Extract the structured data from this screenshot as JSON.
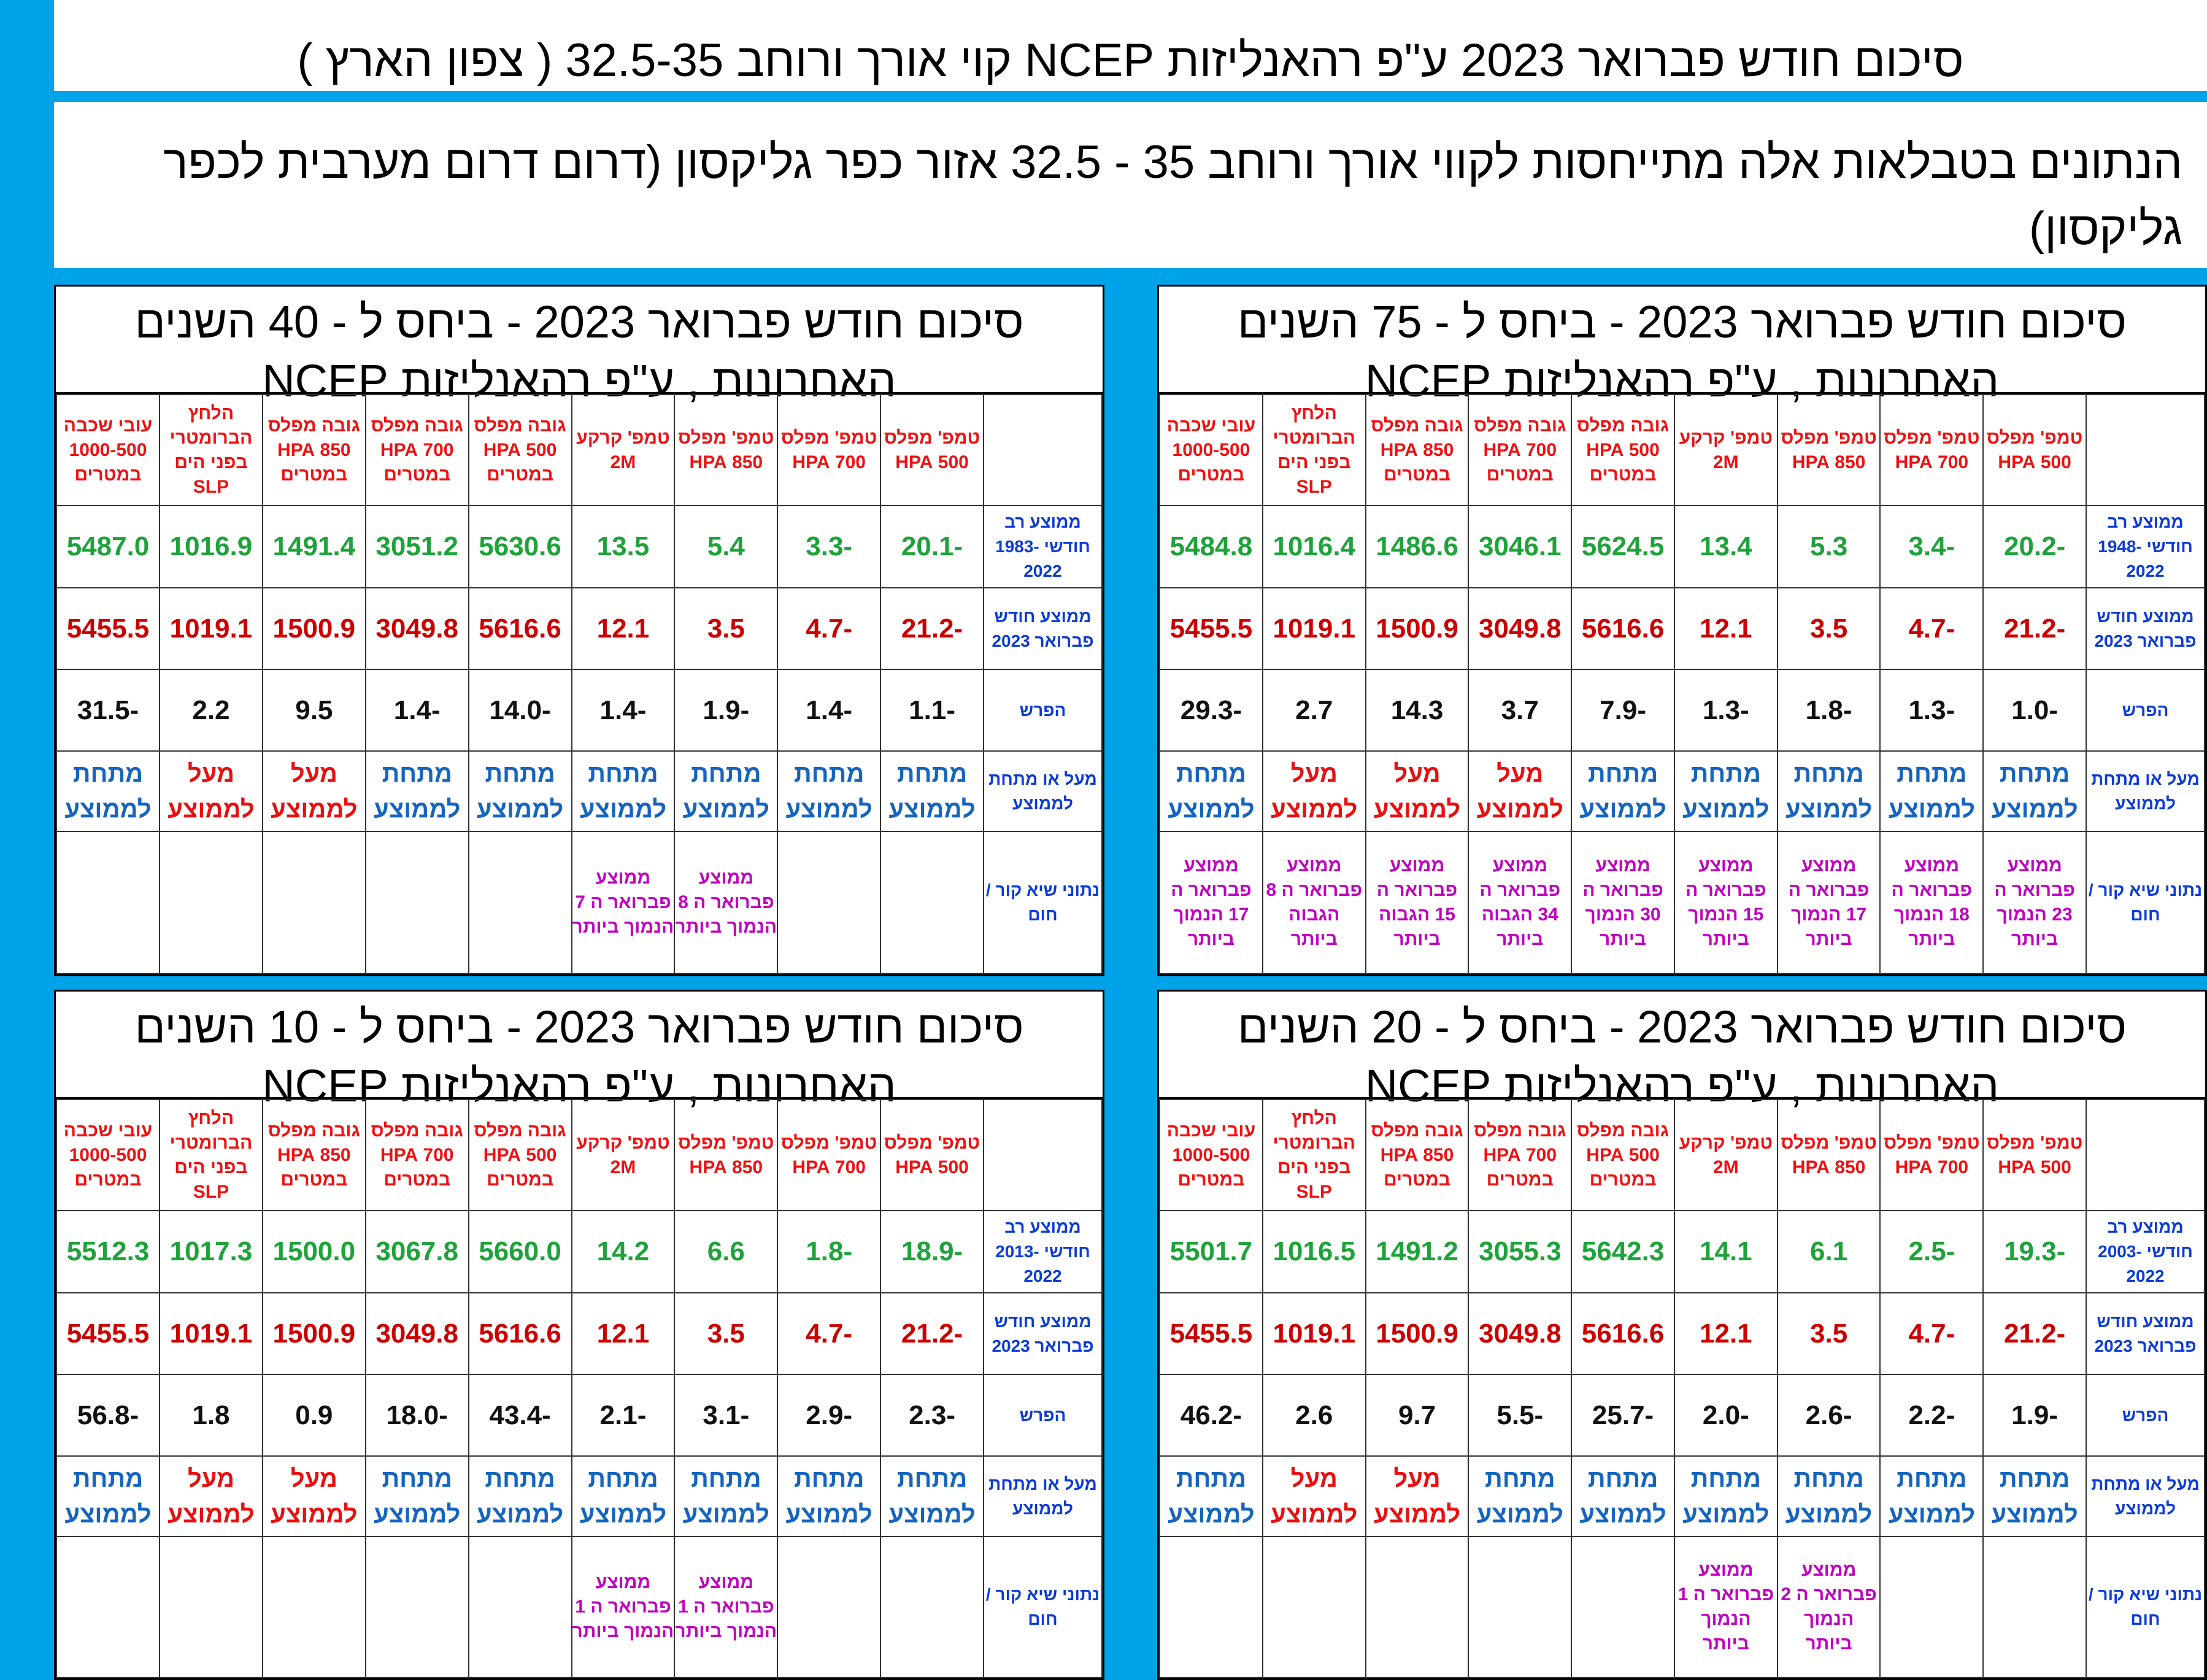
{
  "main_title": "סיכום חודש פברואר 2023 ע\"פ רהאנליזות NCEP קוי אורך ורוחב 32.5-35 ( צפון הארץ )",
  "info": "הנתונים בטבלאות אלה מתייחסות לקווי אורך ורוחב 35 - 32.5 אזור כפר גליקסון (דרום דרום מערבית לכפר גליקסון)",
  "columns": [
    "טמפ' מפלס 500 HPA",
    "טמפ' מפלס 700 HPA",
    "טמפ' מפלס 850 HPA",
    "טמפ' קרקע 2M",
    "גובה מפלס 500 HPA במטרים",
    "גובה מפלס 700 HPA במטרים",
    "גובה מפלס 850 HPA במטרים",
    "הלחץ הברומטרי בפני הים SLP",
    "עובי שכבה 1000-500 במטרים"
  ],
  "labels": {
    "current": "ממוצע חודש פברואר 2023",
    "diff": "הפרש",
    "above_below": "מעל או מתחת לממוצע",
    "records": "נתוני שיא קור / חום",
    "above": "מעל לממוצע",
    "below": "מתחת לממוצע"
  },
  "panels": [
    {
      "title": "סיכום חודש פברואר 2023 - ביחס ל - 75 השנים האחרונות , ע\"פ רהאנליזות NCEP",
      "clim_label": "ממוצע רב חודשי 1948-2022",
      "clim": [
        "-20.2",
        "-3.4",
        "5.3",
        "13.4",
        "5624.5",
        "3046.1",
        "1486.6",
        "1016.4",
        "5484.8"
      ],
      "current": [
        "-21.2",
        "-4.7",
        "3.5",
        "12.1",
        "5616.6",
        "3049.8",
        "1500.9",
        "1019.1",
        "5455.5"
      ],
      "diff": [
        "-1.0",
        "-1.3",
        "-1.8",
        "-1.3",
        "-7.9",
        "3.7",
        "14.3",
        "2.7",
        "-29.3"
      ],
      "above_below": [
        "below",
        "below",
        "below",
        "below",
        "below",
        "above",
        "above",
        "above",
        "below"
      ],
      "records": [
        "ממוצע פברואר ה 23 הנמוך ביותר",
        "ממוצע פברואר ה 18 הנמוך ביותר",
        "ממוצע פברואר ה 17 הנמוך ביותר",
        "ממוצע פברואר ה 15 הנמוך ביותר",
        "ממוצע פברואר ה 30 הנמוך ביותר",
        "ממוצע פברואר ה 34 הגבוה ביותר",
        "ממוצע פברואר ה 15 הגבוה ביותר",
        "ממוצע פברואר ה 8 הגבוה ביותר",
        "ממוצע פברואר ה 17 הנמוך ביותר"
      ]
    },
    {
      "title": "סיכום חודש פברואר 2023 - ביחס ל - 40 השנים האחרונות , ע\"פ רהאנליזות NCEP",
      "clim_label": "ממוצע רב חודשי 1983-2022",
      "clim": [
        "-20.1",
        "-3.3",
        "5.4",
        "13.5",
        "5630.6",
        "3051.2",
        "1491.4",
        "1016.9",
        "5487.0"
      ],
      "current": [
        "-21.2",
        "-4.7",
        "3.5",
        "12.1",
        "5616.6",
        "3049.8",
        "1500.9",
        "1019.1",
        "5455.5"
      ],
      "diff": [
        "-1.1",
        "-1.4",
        "-1.9",
        "-1.4",
        "-14.0",
        "-1.4",
        "9.5",
        "2.2",
        "-31.5"
      ],
      "above_below": [
        "below",
        "below",
        "below",
        "below",
        "below",
        "below",
        "above",
        "above",
        "below"
      ],
      "records": [
        "",
        "",
        "ממוצע פברואר ה 8 הנמוך ביותר",
        "ממוצע פברואר ה 7 הנמוך ביותר",
        "",
        "",
        "",
        "",
        ""
      ]
    },
    {
      "title": "סיכום חודש פברואר 2023 - ביחס ל - 20 השנים האחרונות , ע\"פ רהאנליזות NCEP",
      "clim_label": "ממוצע רב חודשי 2003-2022",
      "clim": [
        "-19.3",
        "-2.5",
        "6.1",
        "14.1",
        "5642.3",
        "3055.3",
        "1491.2",
        "1016.5",
        "5501.7"
      ],
      "current": [
        "-21.2",
        "-4.7",
        "3.5",
        "12.1",
        "5616.6",
        "3049.8",
        "1500.9",
        "1019.1",
        "5455.5"
      ],
      "diff": [
        "-1.9",
        "-2.2",
        "-2.6",
        "-2.0",
        "-25.7",
        "-5.5",
        "9.7",
        "2.6",
        "-46.2"
      ],
      "above_below": [
        "below",
        "below",
        "below",
        "below",
        "below",
        "below",
        "above",
        "above",
        "below"
      ],
      "records": [
        "",
        "",
        "ממוצע פברואר ה 2 הנמוך ביותר",
        "ממוצע פברואר ה 1 הנמוך ביותר",
        "",
        "",
        "",
        "",
        ""
      ]
    },
    {
      "title": "סיכום חודש פברואר 2023 - ביחס ל - 10 השנים האחרונות , ע\"פ רהאנליזות NCEP",
      "clim_label": "ממוצע רב חודשי 2013-2022",
      "clim": [
        "-18.9",
        "-1.8",
        "6.6",
        "14.2",
        "5660.0",
        "3067.8",
        "1500.0",
        "1017.3",
        "5512.3"
      ],
      "current": [
        "-21.2",
        "-4.7",
        "3.5",
        "12.1",
        "5616.6",
        "3049.8",
        "1500.9",
        "1019.1",
        "5455.5"
      ],
      "diff": [
        "-2.3",
        "-2.9",
        "-3.1",
        "-2.1",
        "-43.4",
        "-18.0",
        "0.9",
        "1.8",
        "-56.8"
      ],
      "above_below": [
        "below",
        "below",
        "below",
        "below",
        "below",
        "below",
        "above",
        "above",
        "below"
      ],
      "records": [
        "",
        "",
        "ממוצע פברואר ה 1 הנמוך ביותר",
        "ממוצע פברואר ה 1 הנמוך ביותר",
        "",
        "",
        "",
        "",
        ""
      ]
    }
  ]
}
